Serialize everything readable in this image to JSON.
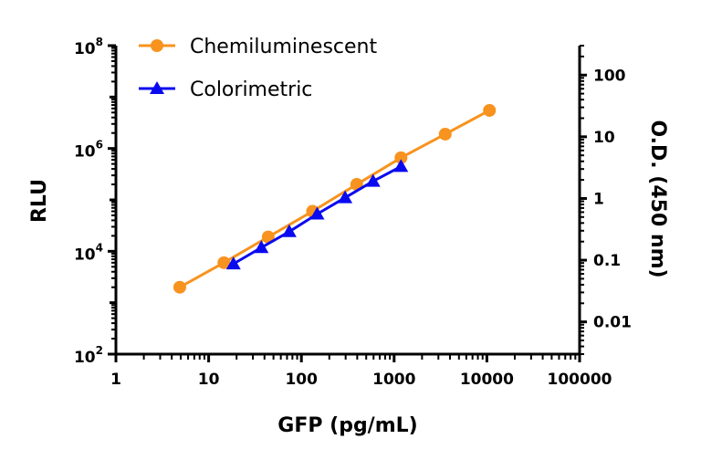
{
  "chart_data": {
    "type": "line",
    "xlabel": "GFP (pg/mL)",
    "ylabel": "RLU",
    "y2label": "O.D. (450 nm)",
    "xscale": "log",
    "yscale": "log",
    "y2scale": "log",
    "xlim": [
      1,
      100000
    ],
    "ylim": [
      100,
      100000000
    ],
    "y2lim": [
      0.003,
      300
    ],
    "x_ticks": [
      "1",
      "10",
      "100",
      "1000",
      "10000",
      "100000"
    ],
    "y_ticks": [
      {
        "base": "10",
        "exp": "2"
      },
      {
        "base": "10",
        "exp": "4"
      },
      {
        "base": "10",
        "exp": "6"
      },
      {
        "base": "10",
        "exp": "8"
      }
    ],
    "y2_ticks": [
      "0.01",
      "0.1",
      "1",
      "10",
      "100"
    ],
    "grid": false,
    "legend_position": "top-left",
    "series": [
      {
        "name": "Chemiluminescent",
        "axis": "left",
        "marker": "circle",
        "color": "#F7931E",
        "x": [
          4.88,
          14.6,
          43.9,
          132,
          395,
          1185,
          3556,
          10667
        ],
        "y": [
          2000,
          6000,
          19000,
          60000,
          200000,
          660000,
          1900000,
          5500000
        ]
      },
      {
        "name": "Colorimetric",
        "axis": "right",
        "marker": "triangle",
        "color": "#0A0AF0",
        "x": [
          18.5,
          37,
          74,
          148,
          296,
          593,
          1185
        ],
        "y": [
          0.087,
          0.16,
          0.29,
          0.56,
          1.03,
          1.9,
          3.3
        ]
      }
    ]
  }
}
